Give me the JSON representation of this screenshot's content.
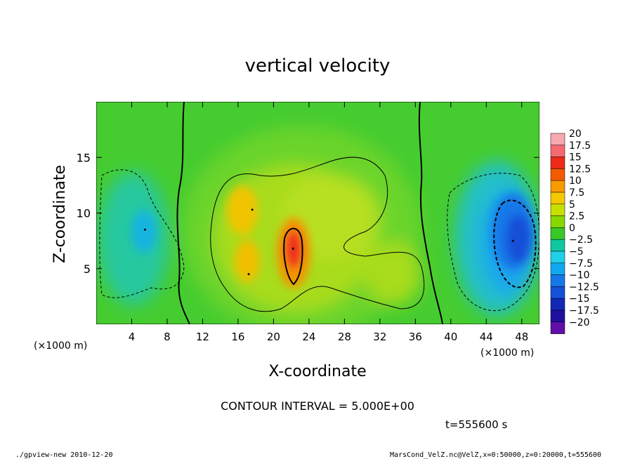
{
  "chart_data": {
    "type": "heatmap",
    "title": "vertical velocity",
    "xlabel": "X-coordinate",
    "ylabel": "Z-coordinate",
    "x_unit_left": "(×1000 m)",
    "x_unit_right": "(×1000 m)",
    "xlim": [
      0,
      50
    ],
    "ylim": [
      0,
      20
    ],
    "x_ticks": [
      4,
      8,
      12,
      16,
      20,
      24,
      28,
      32,
      36,
      40,
      44,
      48
    ],
    "y_ticks": [
      5,
      10,
      15
    ],
    "contour_interval_label": "CONTOUR INTERVAL = 5.000E+00",
    "time_label": "t=555600 s",
    "colorbar": {
      "levels": [
        "20",
        "17.5",
        "15",
        "12.5",
        "10",
        "7.5",
        "5",
        "2.5",
        "0",
        "−2.5",
        "−5",
        "−7.5",
        "−10",
        "−12.5",
        "−15",
        "−17.5",
        "−20"
      ],
      "colors": [
        "#f7a8b0",
        "#f46a70",
        "#ee2a1a",
        "#f45a00",
        "#f89a00",
        "#f4c800",
        "#c8e000",
        "#88d800",
        "#38c828",
        "#10c8a0",
        "#20d0e8",
        "#10a8f0",
        "#1478e8",
        "#1450d8",
        "#1428b8",
        "#2010a0",
        "#6010a8"
      ]
    },
    "features": [
      {
        "kind": "maximum",
        "x": 22.2,
        "z": 6.8,
        "value": 15
      },
      {
        "kind": "maximum",
        "x": 17.6,
        "z": 10.3,
        "value": 10
      },
      {
        "kind": "maximum",
        "x": 17.2,
        "z": 4.5,
        "value": 10
      },
      {
        "kind": "minimum",
        "x": 47.0,
        "z": 7.5,
        "value": -10
      },
      {
        "kind": "minimum",
        "x": 5.5,
        "z": 8.5,
        "value": -5
      }
    ]
  },
  "footer": {
    "left": "./gpview-new  2010-12-20",
    "right": "MarsCond_VelZ.nc@VelZ,x=0:50000,z=0:20000,t=555600"
  }
}
